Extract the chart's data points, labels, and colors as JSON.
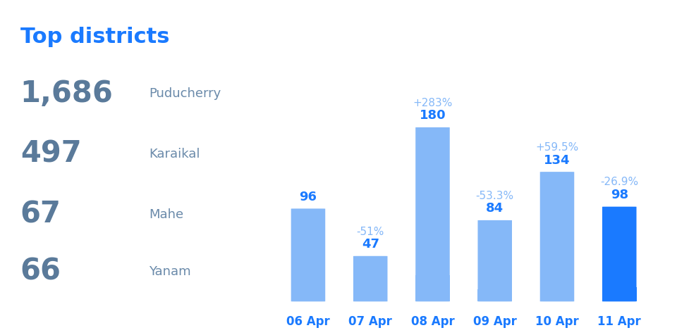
{
  "title": "Top districts",
  "title_color": "#1a7aff",
  "background_color": "#ffffff",
  "left_panel": {
    "districts": [
      {
        "value": "1,686",
        "name": "Puducherry"
      },
      {
        "value": "497",
        "name": "Karaikal"
      },
      {
        "value": "67",
        "name": "Mahe"
      },
      {
        "value": "66",
        "name": "Yanam"
      }
    ],
    "value_color": "#5a7a9a",
    "name_color": "#6a8aaa",
    "value_fontsize": 30,
    "name_fontsize": 13
  },
  "bar_chart": {
    "dates": [
      "06 Apr",
      "07 Apr",
      "08 Apr",
      "09 Apr",
      "10 Apr",
      "11 Apr"
    ],
    "values": [
      96,
      47,
      180,
      84,
      134,
      98
    ],
    "pct_labels": [
      "",
      "-51%",
      "+283%",
      "-53.3%",
      "+59.5%",
      "-26.9%"
    ],
    "bar_colors": [
      "#85b8f8",
      "#85b8f8",
      "#85b8f8",
      "#85b8f8",
      "#85b8f8",
      "#1a7aff"
    ],
    "value_color": "#1a7aff",
    "pct_color": "#85b8f8",
    "date_color": "#1a7aff",
    "value_fontsize": 13,
    "pct_fontsize": 11,
    "date_fontsize": 12
  }
}
